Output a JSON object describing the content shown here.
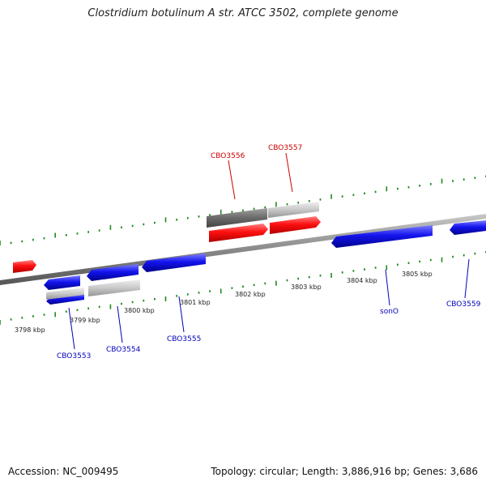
{
  "title": "Clostridium botulinum A str. ATCC 3502, complete genome",
  "footer": {
    "accession": "Accession: NC_009495",
    "summary": "Topology: circular; Length: 3,886,916 bp; Genes: 3,686"
  },
  "colors": {
    "axis": "#8a8a8a",
    "tick": "#1f8a1f",
    "gene_forward_labeled": "#ff1a1a",
    "gene_reverse_labeled": "#1a1aee",
    "gene_dark": "#6a6a6a",
    "gene_light": "#c4c4c4",
    "label_forward": "#cc0000",
    "label_reverse": "#0000bb"
  },
  "scale_labels": [
    "3798 kbp",
    "3799 kbp",
    "3800 kbp",
    "3801 kbp",
    "3802 kbp",
    "3803 kbp",
    "3804 kbp",
    "3805 kbp"
  ],
  "gene_labels": {
    "forward": [
      "CBO3556",
      "CBO3557"
    ],
    "reverse": [
      "CBO3553",
      "CBO3554",
      "CBO3555",
      "sonO",
      "CBO3559"
    ]
  }
}
